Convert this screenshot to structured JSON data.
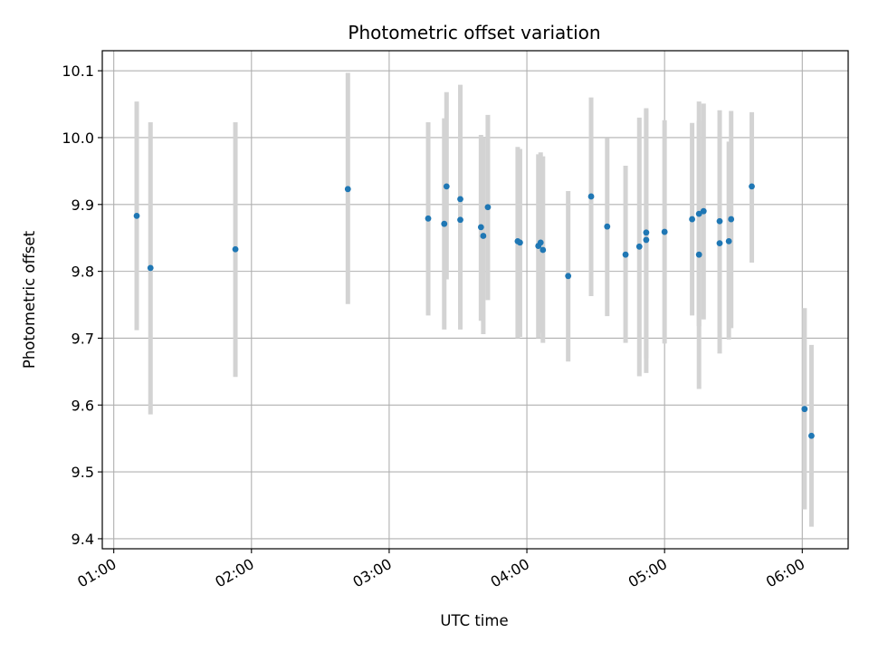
{
  "chart_data": {
    "type": "scatter",
    "title": "Photometric offset variation",
    "xlabel": "UTC time",
    "ylabel": "Photometric offset",
    "x_tick_labels": [
      "01:00",
      "02:00",
      "03:00",
      "04:00",
      "05:00",
      "06:00"
    ],
    "x_ticks": [
      "01:00",
      "02:00",
      "03:00",
      "04:00",
      "05:00",
      "06:00"
    ],
    "xlim": [
      "00:55",
      "06:20"
    ],
    "y_ticks": [
      9.4,
      9.5,
      9.6,
      9.7,
      9.8,
      9.9,
      10.0,
      10.1
    ],
    "y_tick_labels": [
      "9.4",
      "9.5",
      "9.6",
      "9.7",
      "9.8",
      "9.9",
      "10.0",
      "10.1"
    ],
    "ylim": [
      9.385,
      10.13
    ],
    "grid": true,
    "colors": {
      "point": "#1f77b4",
      "errorbar": "#d3d3d3",
      "grid": "#b0b0b0"
    },
    "points": [
      {
        "x": "01:10",
        "y": 9.883,
        "err_low": 9.712,
        "err_high": 10.054
      },
      {
        "x": "01:16",
        "y": 9.805,
        "err_low": 9.586,
        "err_high": 10.023
      },
      {
        "x": "01:53",
        "y": 9.833,
        "err_low": 9.642,
        "err_high": 10.023
      },
      {
        "x": "02:42",
        "y": 9.923,
        "err_low": 9.751,
        "err_high": 10.097
      },
      {
        "x": "03:17",
        "y": 9.879,
        "err_low": 9.734,
        "err_high": 10.023
      },
      {
        "x": "03:24",
        "y": 9.871,
        "err_low": 9.713,
        "err_high": 10.029
      },
      {
        "x": "03:25",
        "y": 9.927,
        "err_low": 9.788,
        "err_high": 10.068
      },
      {
        "x": "03:31",
        "y": 9.877,
        "err_low": 9.713,
        "err_high": 10.041
      },
      {
        "x": "03:31",
        "y": 9.908,
        "err_low": 9.738,
        "err_high": 10.079
      },
      {
        "x": "03:40",
        "y": 9.866,
        "err_low": 9.726,
        "err_high": 10.004
      },
      {
        "x": "03:41",
        "y": 9.853,
        "err_low": 9.706,
        "err_high": 10.0
      },
      {
        "x": "03:43",
        "y": 9.896,
        "err_low": 9.757,
        "err_high": 10.034
      },
      {
        "x": "03:56",
        "y": 9.845,
        "err_low": 9.7,
        "err_high": 9.986
      },
      {
        "x": "03:57",
        "y": 9.843,
        "err_low": 9.702,
        "err_high": 9.983
      },
      {
        "x": "04:05",
        "y": 9.838,
        "err_low": 9.7,
        "err_high": 9.975
      },
      {
        "x": "04:06",
        "y": 9.843,
        "err_low": 9.708,
        "err_high": 9.978
      },
      {
        "x": "04:07",
        "y": 9.832,
        "err_low": 9.693,
        "err_high": 9.972
      },
      {
        "x": "04:18",
        "y": 9.793,
        "err_low": 9.665,
        "err_high": 9.92
      },
      {
        "x": "04:28",
        "y": 9.912,
        "err_low": 9.763,
        "err_high": 10.06
      },
      {
        "x": "04:35",
        "y": 9.867,
        "err_low": 9.733,
        "err_high": 9.999
      },
      {
        "x": "04:43",
        "y": 9.825,
        "err_low": 9.693,
        "err_high": 9.958
      },
      {
        "x": "04:49",
        "y": 9.837,
        "err_low": 9.643,
        "err_high": 10.03
      },
      {
        "x": "04:52",
        "y": 9.847,
        "err_low": 9.648,
        "err_high": 10.044
      },
      {
        "x": "04:52",
        "y": 9.858,
        "err_low": 9.67,
        "err_high": 10.042
      },
      {
        "x": "05:00",
        "y": 9.859,
        "err_low": 9.692,
        "err_high": 10.026
      },
      {
        "x": "05:12",
        "y": 9.878,
        "err_low": 9.734,
        "err_high": 10.022
      },
      {
        "x": "05:15",
        "y": 9.825,
        "err_low": 9.624,
        "err_high": 10.025
      },
      {
        "x": "05:15",
        "y": 9.886,
        "err_low": 9.718,
        "err_high": 10.054
      },
      {
        "x": "05:17",
        "y": 9.89,
        "err_low": 9.728,
        "err_high": 10.051
      },
      {
        "x": "05:24",
        "y": 9.875,
        "err_low": 9.708,
        "err_high": 10.041
      },
      {
        "x": "05:24",
        "y": 9.842,
        "err_low": 9.677,
        "err_high": 10.01
      },
      {
        "x": "05:28",
        "y": 9.845,
        "err_low": 9.698,
        "err_high": 9.994
      },
      {
        "x": "05:29",
        "y": 9.878,
        "err_low": 9.715,
        "err_high": 10.04
      },
      {
        "x": "05:38",
        "y": 9.927,
        "err_low": 9.813,
        "err_high": 10.038
      },
      {
        "x": "06:01",
        "y": 9.594,
        "err_low": 9.444,
        "err_high": 9.745
      },
      {
        "x": "06:04",
        "y": 9.554,
        "err_low": 9.418,
        "err_high": 9.69
      }
    ]
  }
}
